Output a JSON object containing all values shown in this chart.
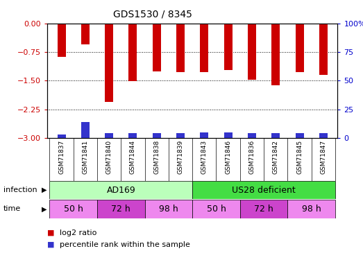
{
  "title": "GDS1530 / 8345",
  "samples": [
    "GSM71837",
    "GSM71841",
    "GSM71840",
    "GSM71844",
    "GSM71838",
    "GSM71839",
    "GSM71843",
    "GSM71846",
    "GSM71836",
    "GSM71842",
    "GSM71845",
    "GSM71847"
  ],
  "log2_ratio": [
    -0.87,
    -0.55,
    -2.05,
    -1.52,
    -1.25,
    -1.28,
    -1.27,
    -1.22,
    -1.48,
    -1.62,
    -1.27,
    -1.35
  ],
  "percentile": [
    3,
    14,
    4,
    4,
    4,
    4,
    5,
    5,
    4,
    4,
    4,
    4
  ],
  "bar_color": "#cc0000",
  "blue_color": "#3333cc",
  "ylim_left": [
    -3.0,
    0.0
  ],
  "ylim_right": [
    0,
    100
  ],
  "yticks_left": [
    -3,
    -2.25,
    -1.5,
    -0.75,
    0
  ],
  "yticks_right": [
    0,
    25,
    50,
    75,
    100
  ],
  "ad169_color": "#bbffbb",
  "us28_color": "#44dd44",
  "time_50_color": "#ee88ee",
  "time_72_color": "#cc44cc",
  "time_98_color": "#ee88ee",
  "xtick_bg_color": "#cccccc",
  "bg_color": "#ffffff",
  "axis_color_left": "#cc0000",
  "axis_color_right": "#0000cc",
  "bar_width": 0.35,
  "time_data": [
    {
      "label": "50 h",
      "start": 0,
      "end": 1
    },
    {
      "label": "72 h",
      "start": 2,
      "end": 3
    },
    {
      "label": "98 h",
      "start": 4,
      "end": 5
    },
    {
      "label": "50 h",
      "start": 6,
      "end": 7
    },
    {
      "label": "72 h",
      "start": 8,
      "end": 9
    },
    {
      "label": "98 h",
      "start": 10,
      "end": 11
    }
  ]
}
